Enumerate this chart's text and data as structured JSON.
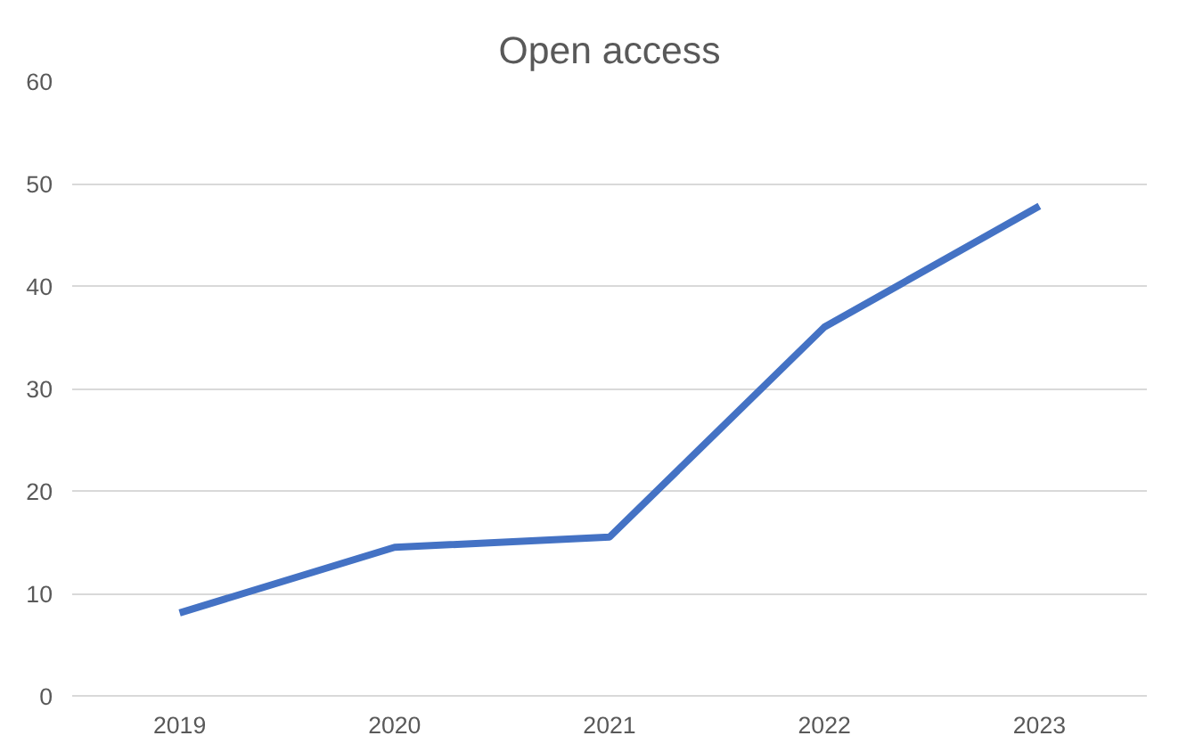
{
  "chart_data": {
    "type": "line",
    "title": "Open access",
    "categories": [
      "2019",
      "2020",
      "2021",
      "2022",
      "2023"
    ],
    "series": [
      {
        "color": "#4472c4",
        "values": [
          8.1,
          14.5,
          15.5,
          36,
          47.8
        ]
      }
    ],
    "ylim": [
      0,
      60
    ],
    "yticks": [
      0,
      10,
      20,
      30,
      40,
      50,
      60
    ],
    "grid": "y",
    "marker": "none",
    "line_style": "solid"
  }
}
